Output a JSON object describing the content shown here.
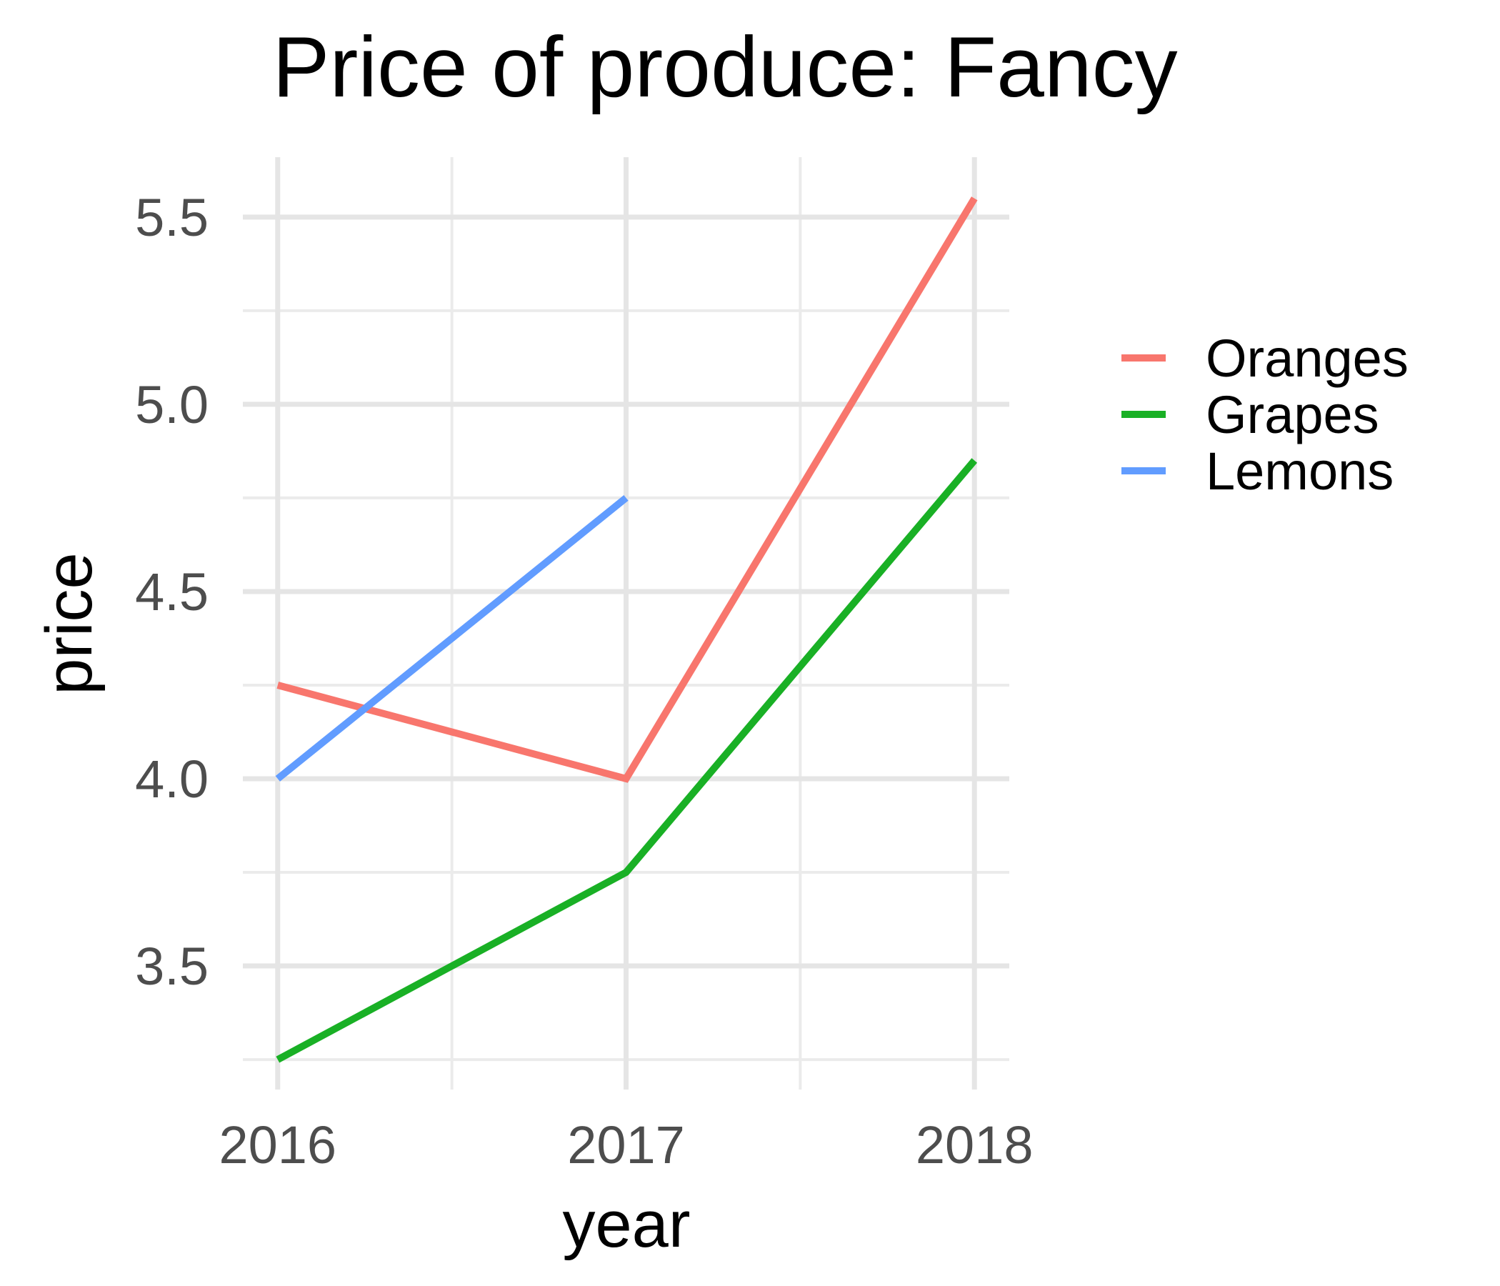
{
  "chart_data": {
    "type": "line",
    "title": "Price of produce: Fancy",
    "xlabel": "year",
    "ylabel": "price",
    "x": [
      2016,
      2017,
      2018
    ],
    "x_tick_labels": [
      "2016",
      "2017",
      "2018"
    ],
    "xlim": [
      2015.9,
      2018.1
    ],
    "y_ticks": [
      3.5,
      4.0,
      4.5,
      5.0,
      5.5
    ],
    "y_tick_labels": [
      "3.5",
      "4.0",
      "4.5",
      "5.0",
      "5.5"
    ],
    "ylim": [
      3.17,
      5.66
    ],
    "grid": true,
    "legend_position": "right",
    "series": [
      {
        "name": "Oranges",
        "color": "#F8766D",
        "x": [
          2016,
          2017,
          2018
        ],
        "values": [
          4.25,
          4.0,
          5.55
        ]
      },
      {
        "name": "Grapes",
        "color": "#19B025",
        "x": [
          2016,
          2017,
          2018
        ],
        "values": [
          3.25,
          3.75,
          4.85
        ]
      },
      {
        "name": "Lemons",
        "color": "#619CFF",
        "x": [
          2016,
          2017
        ],
        "values": [
          4.0,
          4.75
        ]
      }
    ]
  }
}
